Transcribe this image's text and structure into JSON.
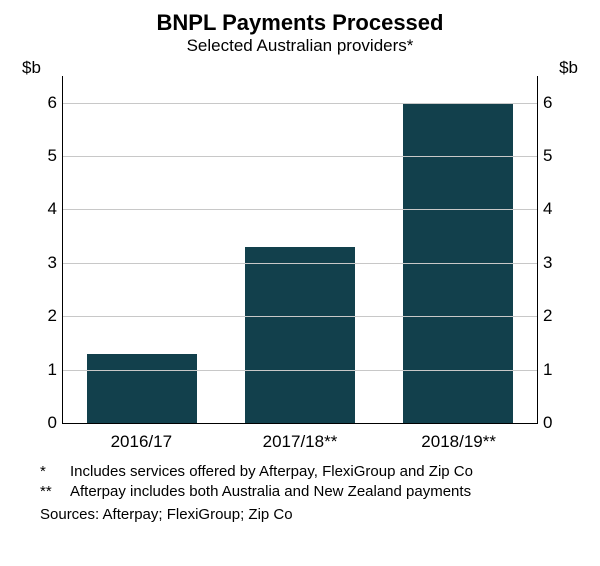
{
  "chart": {
    "type": "bar",
    "title": "BNPL Payments Processed",
    "subtitle": "Selected Australian providers*",
    "title_fontsize": 22,
    "subtitle_fontsize": 17,
    "y_unit_label": "$b",
    "unit_fontsize": 17,
    "categories": [
      "2016/17",
      "2017/18**",
      "2018/19**"
    ],
    "values": [
      1.3,
      3.3,
      6.0
    ],
    "bar_color": "#12404c",
    "bar_width_pct": 23,
    "ylim_min": 0,
    "ylim_max": 6.5,
    "yticks": [
      0,
      1,
      2,
      3,
      4,
      5,
      6
    ],
    "tick_fontsize": 17,
    "xlabel_fontsize": 17,
    "grid_color": "#c8c8c8",
    "axis_color": "#000000",
    "background_color": "#ffffff",
    "footnotes": [
      {
        "mark": "*",
        "text": "Includes services offered by Afterpay, FlexiGroup and Zip Co"
      },
      {
        "mark": "**",
        "text": "Afterpay includes both Australia and New Zealand payments"
      }
    ],
    "sources_label": "Sources: Afterpay; FlexiGroup; Zip Co",
    "footnote_fontsize": 15
  }
}
